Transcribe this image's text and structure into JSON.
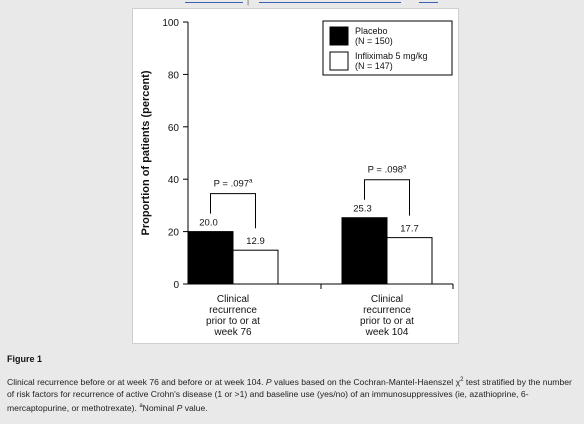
{
  "figure": {
    "label": "Figure 1",
    "caption_part1": "Clinical recurrence before or at week 76 and before or at week 104. ",
    "caption_p": "P",
    "caption_part2": " values based on the Cochran-Mantel-Haenszel χ",
    "caption_sup": "2",
    "caption_part3": " test stratified by the number of risk factors for recurrence of active Crohn's disease (1 or >1) and baseline use (yes/no) of an immunosuppressives (ie, azathioprine, 6-mercaptopurine, or methotrexate). ",
    "caption_a": "a",
    "caption_part4": "Nominal ",
    "caption_p2": "P",
    "caption_part5": " value."
  },
  "chart_data": {
    "type": "bar",
    "ylabel": "Proportion of patients (percent)",
    "ylim": [
      0,
      100
    ],
    "yticks": [
      0,
      20,
      40,
      60,
      80,
      100
    ],
    "categories": [
      [
        "Clinical",
        "recurrence",
        "prior to or at",
        "week 76"
      ],
      [
        "Clinical",
        "recurrence",
        "prior to or at",
        "week 104"
      ]
    ],
    "series": [
      {
        "name": "Placebo",
        "n_label": "(N = 150)",
        "color": "#000000",
        "values": [
          20.0,
          25.3
        ],
        "labels": [
          "20.0",
          "25.3"
        ]
      },
      {
        "name": "Infliximab 5 mg/kg",
        "n_label": "(N = 147)",
        "color": "#ffffff",
        "values": [
          12.9,
          17.7
        ],
        "labels": [
          "12.9",
          "17.7"
        ]
      }
    ],
    "annotations": [
      {
        "text": "P = .097",
        "sup": "a"
      },
      {
        "text": "P = .098",
        "sup": "a"
      }
    ],
    "legend_position": "top-right",
    "grid": false
  }
}
